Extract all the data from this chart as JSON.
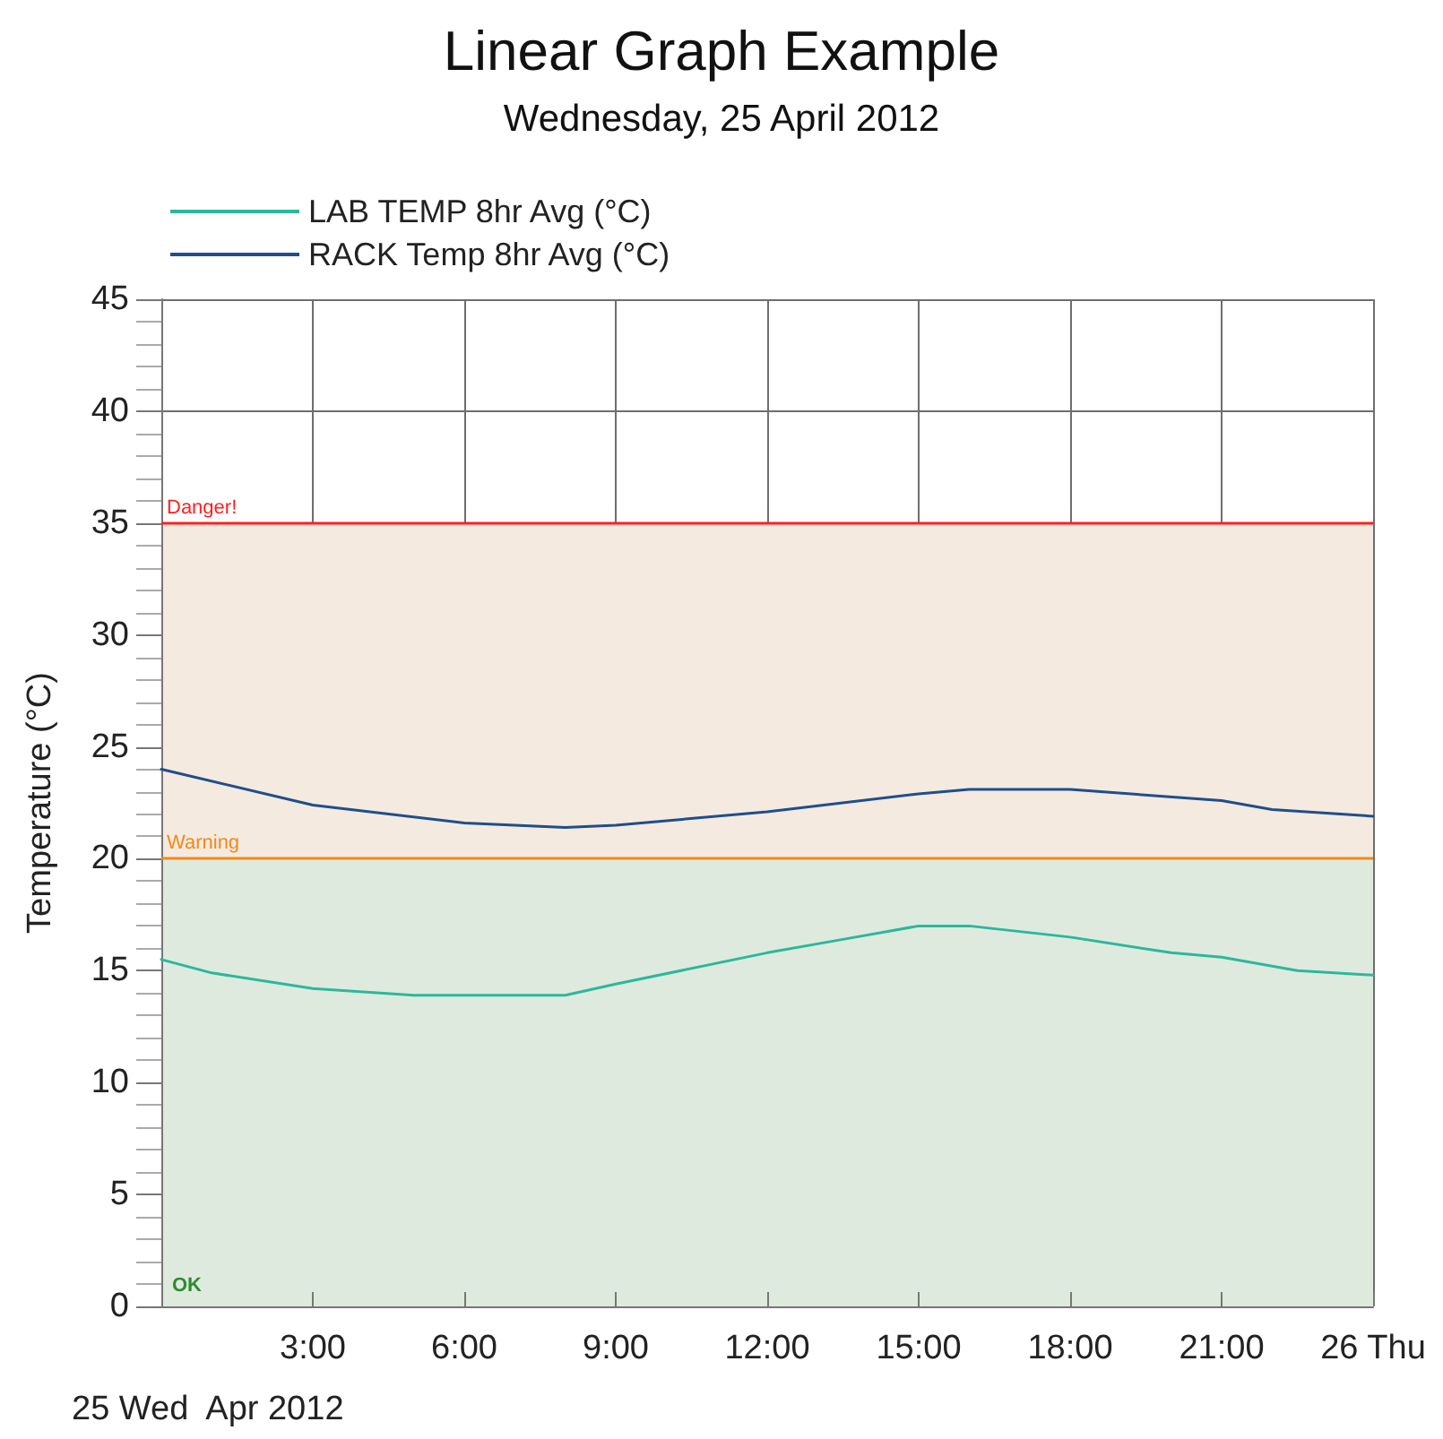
{
  "chart_data": {
    "type": "line",
    "title": "Linear Graph Example",
    "subtitle": "Wednesday, 25 April 2012",
    "ylabel": "Temperature (°C)",
    "annotations": [
      "25 Wed  Apr 2012"
    ],
    "xlim": [
      "2012-04-25T00:00",
      "2012-04-26T00:00"
    ],
    "xticks": [
      {
        "value": "2012-04-25T03:00",
        "label": "3:00"
      },
      {
        "value": "2012-04-25T06:00",
        "label": "6:00"
      },
      {
        "value": "2012-04-25T09:00",
        "label": "9:00"
      },
      {
        "value": "2012-04-25T12:00",
        "label": "12:00"
      },
      {
        "value": "2012-04-25T15:00",
        "label": "15:00"
      },
      {
        "value": "2012-04-25T18:00",
        "label": "18:00"
      },
      {
        "value": "2012-04-25T21:00",
        "label": "21:00"
      },
      {
        "value": "2012-04-26T00:00",
        "label": "26 Thu"
      }
    ],
    "ylim": [
      0,
      45
    ],
    "yticks": [
      0,
      5,
      10,
      15,
      20,
      25,
      30,
      35,
      40,
      45
    ],
    "series": [
      {
        "name": "LAB TEMP 8hr Avg (°C)",
        "color": "#2bb89c",
        "x": [
          "2012-04-25T00:00",
          "2012-04-25T01:00",
          "2012-04-25T03:00",
          "2012-04-25T05:00",
          "2012-04-25T08:00",
          "2012-04-25T09:00",
          "2012-04-25T12:00",
          "2012-04-25T13:30",
          "2012-04-25T15:00",
          "2012-04-25T16:00",
          "2012-04-25T18:00",
          "2012-04-25T20:00",
          "2012-04-25T21:00",
          "2012-04-25T22:30",
          "2012-04-26T00:00"
        ],
        "values": [
          15.5,
          14.9,
          14.2,
          13.9,
          13.9,
          14.4,
          15.8,
          16.4,
          17.0,
          17.0,
          16.5,
          15.8,
          15.6,
          15.0,
          14.8
        ]
      },
      {
        "name": "RACK Temp 8hr Avg (°C)",
        "color": "#1f4e8c",
        "x": [
          "2012-04-25T00:00",
          "2012-04-25T03:00",
          "2012-04-25T06:00",
          "2012-04-25T08:00",
          "2012-04-25T09:00",
          "2012-04-25T12:00",
          "2012-04-25T15:00",
          "2012-04-25T16:00",
          "2012-04-25T18:00",
          "2012-04-25T21:00",
          "2012-04-25T22:00",
          "2012-04-26T00:00"
        ],
        "values": [
          24.0,
          22.4,
          21.6,
          21.4,
          21.5,
          22.1,
          22.9,
          23.1,
          23.1,
          22.6,
          22.2,
          21.9
        ]
      }
    ],
    "bands": [
      {
        "axis": "y",
        "from": 0,
        "to": 20,
        "label": "OK",
        "color": "#dfeadf"
      },
      {
        "axis": "y",
        "from": 20,
        "to": 35,
        "color": "#f5eae0"
      }
    ],
    "ref_lines": [
      {
        "axis": "y",
        "value": 35,
        "label": "Danger!",
        "color": "#ff2020"
      },
      {
        "axis": "y",
        "value": 20,
        "label": "Warning",
        "color": "#f08a18"
      }
    ],
    "grid": true,
    "legend": "top left",
    "marker": "none",
    "line_style": "solid"
  }
}
